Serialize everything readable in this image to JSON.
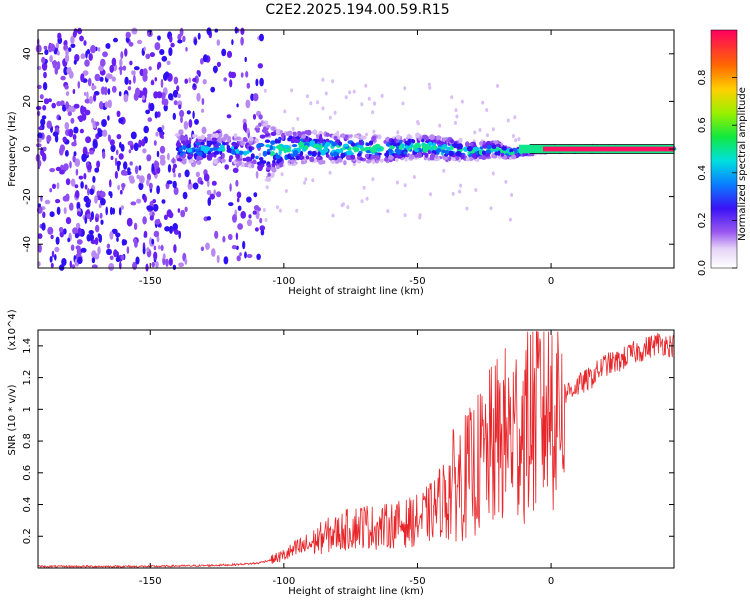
{
  "title": "C2E2.2025.194.00.59.R15",
  "colors": {
    "snr_line": "#e8262a",
    "raw_scatter": "#7a2bf0",
    "axis": "#000000"
  },
  "chart_data": [
    {
      "type": "heatmap",
      "title": "C2E2.2025.194.00.59.R15",
      "xlabel": "Height of straight line (km)",
      "ylabel": "Frequency (Hz)",
      "xlim": [
        -192,
        46
      ],
      "ylim": [
        -50,
        50
      ],
      "xticks": [
        -150,
        -100,
        -50,
        0
      ],
      "xtick_labels": [
        "-150",
        "-100",
        "-50",
        "0"
      ],
      "yticks": [
        -40,
        -20,
        0,
        20,
        40
      ],
      "ytick_labels": [
        "-40",
        "-20",
        "0",
        "20",
        "40"
      ],
      "colorbar": {
        "label": "Normalized spectral amplitude",
        "range": [
          0,
          1
        ],
        "ticks": [
          0.0,
          0.2,
          0.4,
          0.6,
          0.8
        ],
        "tick_labels": [
          "0.0",
          "0.2",
          "0.4",
          "0.6",
          "0.8"
        ],
        "colormap": "rainbow"
      },
      "frequency_track": {
        "x": [
          -140,
          -130,
          -120,
          -110,
          -100,
          -90,
          -80,
          -70,
          -60,
          -50,
          -40,
          -30,
          -20,
          -15,
          -10,
          0,
          10,
          20,
          30,
          46
        ],
        "y": [
          0,
          0,
          0,
          -2,
          0,
          1,
          0,
          0,
          0,
          1,
          0,
          -1,
          0,
          -2,
          -1,
          0,
          0,
          0,
          0,
          0
        ],
        "spread": [
          50,
          50,
          50,
          30,
          14,
          13,
          12,
          11,
          10,
          10,
          9,
          8,
          6,
          4,
          3,
          2,
          2,
          2,
          1,
          1
        ]
      }
    },
    {
      "type": "line",
      "xlabel": "Height of straight line (km)",
      "ylabel": "SNR (10 * v/v)",
      "y_multiplier": "(x10^4)",
      "xlim": [
        -192,
        46
      ],
      "ylim": [
        0,
        1.5
      ],
      "xticks": [
        -150,
        -100,
        -50,
        0
      ],
      "xtick_labels": [
        "-150",
        "-100",
        "-50",
        "0"
      ],
      "yticks": [
        0.2,
        0.4,
        0.6,
        0.8,
        1.0,
        1.2,
        1.4
      ],
      "ytick_labels": [
        "0.2",
        "0.4",
        "0.6",
        "0.8",
        "1",
        "1.2",
        "1.4"
      ],
      "series": [
        {
          "x": [
            -192,
            -170,
            -150,
            -130,
            -120,
            -110,
            -105,
            -100,
            -95,
            -90,
            -85,
            -80,
            -75,
            -70,
            -65,
            -60,
            -55,
            -50,
            -45,
            -40,
            -35,
            -30,
            -25,
            -20,
            -15,
            -10,
            -5,
            0,
            5,
            10,
            15,
            20,
            25,
            30,
            35,
            40,
            46
          ],
          "y": [
            0.01,
            0.01,
            0.01,
            0.015,
            0.02,
            0.03,
            0.05,
            0.08,
            0.12,
            0.15,
            0.2,
            0.22,
            0.25,
            0.27,
            0.25,
            0.27,
            0.28,
            0.3,
            0.35,
            0.45,
            0.55,
            0.6,
            0.7,
            0.8,
            0.85,
            0.9,
            1.0,
            1.05,
            1.1,
            1.15,
            1.2,
            1.28,
            1.3,
            1.35,
            1.38,
            1.42,
            1.4
          ]
        }
      ]
    }
  ]
}
